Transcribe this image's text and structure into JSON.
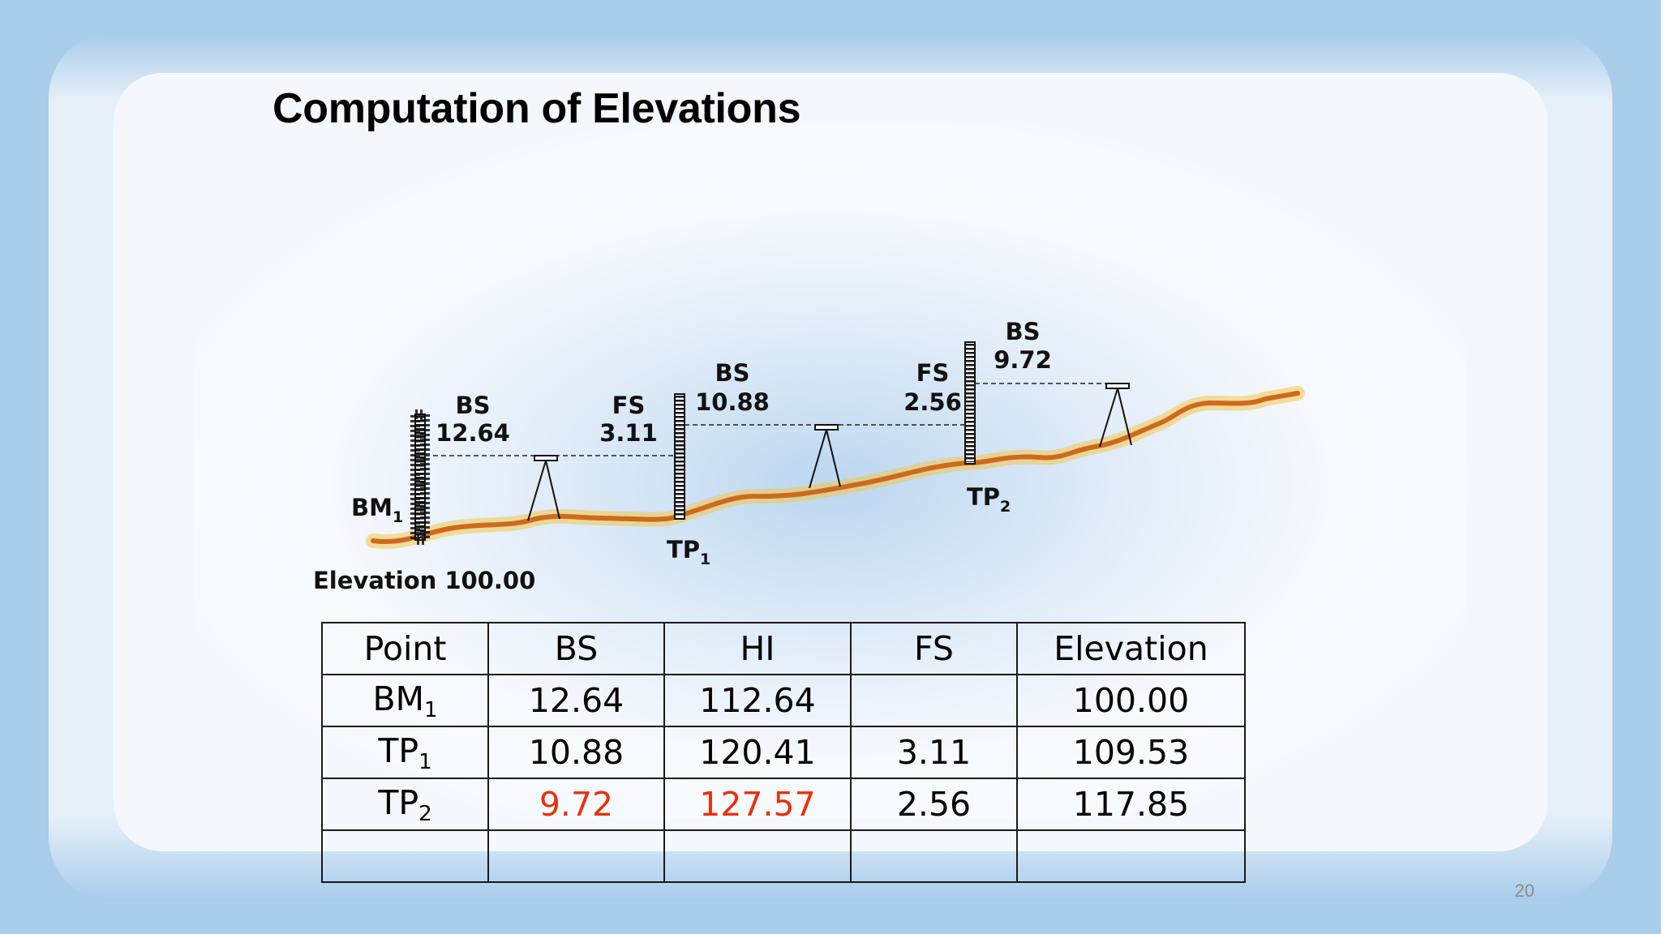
{
  "slide": {
    "title": "Computation of Elevations",
    "page_number": "20"
  },
  "diagram": {
    "bm_label": "BM",
    "bm_sub": "1",
    "elevation_label": "Elevation 100.00",
    "tp1_label": "TP",
    "tp1_sub": "1",
    "tp2_label": "TP",
    "tp2_sub": "2",
    "readings": [
      {
        "type": "BS",
        "value": "12.64"
      },
      {
        "type": "FS",
        "value": "3.11"
      },
      {
        "type": "BS",
        "value": "10.88"
      },
      {
        "type": "FS",
        "value": "2.56"
      },
      {
        "type": "BS",
        "value": "9.72"
      }
    ]
  },
  "table": {
    "headers": [
      "Point",
      "BS",
      "HI",
      "FS",
      "Elevation"
    ],
    "rows": [
      {
        "point": "BM",
        "point_sub": "1",
        "bs": "12.64",
        "hi": "112.64",
        "fs": "",
        "elevation": "100.00"
      },
      {
        "point": "TP",
        "point_sub": "1",
        "bs": "10.88",
        "hi": "120.41",
        "fs": "3.11",
        "elevation": "109.53"
      },
      {
        "point": "TP",
        "point_sub": "2",
        "bs": "9.72",
        "hi": "127.57",
        "fs": "2.56",
        "elevation": "117.85"
      },
      {
        "point": "",
        "point_sub": "",
        "bs": "",
        "hi": "",
        "fs": "",
        "elevation": ""
      }
    ],
    "highlight_color": "#e8300e"
  }
}
